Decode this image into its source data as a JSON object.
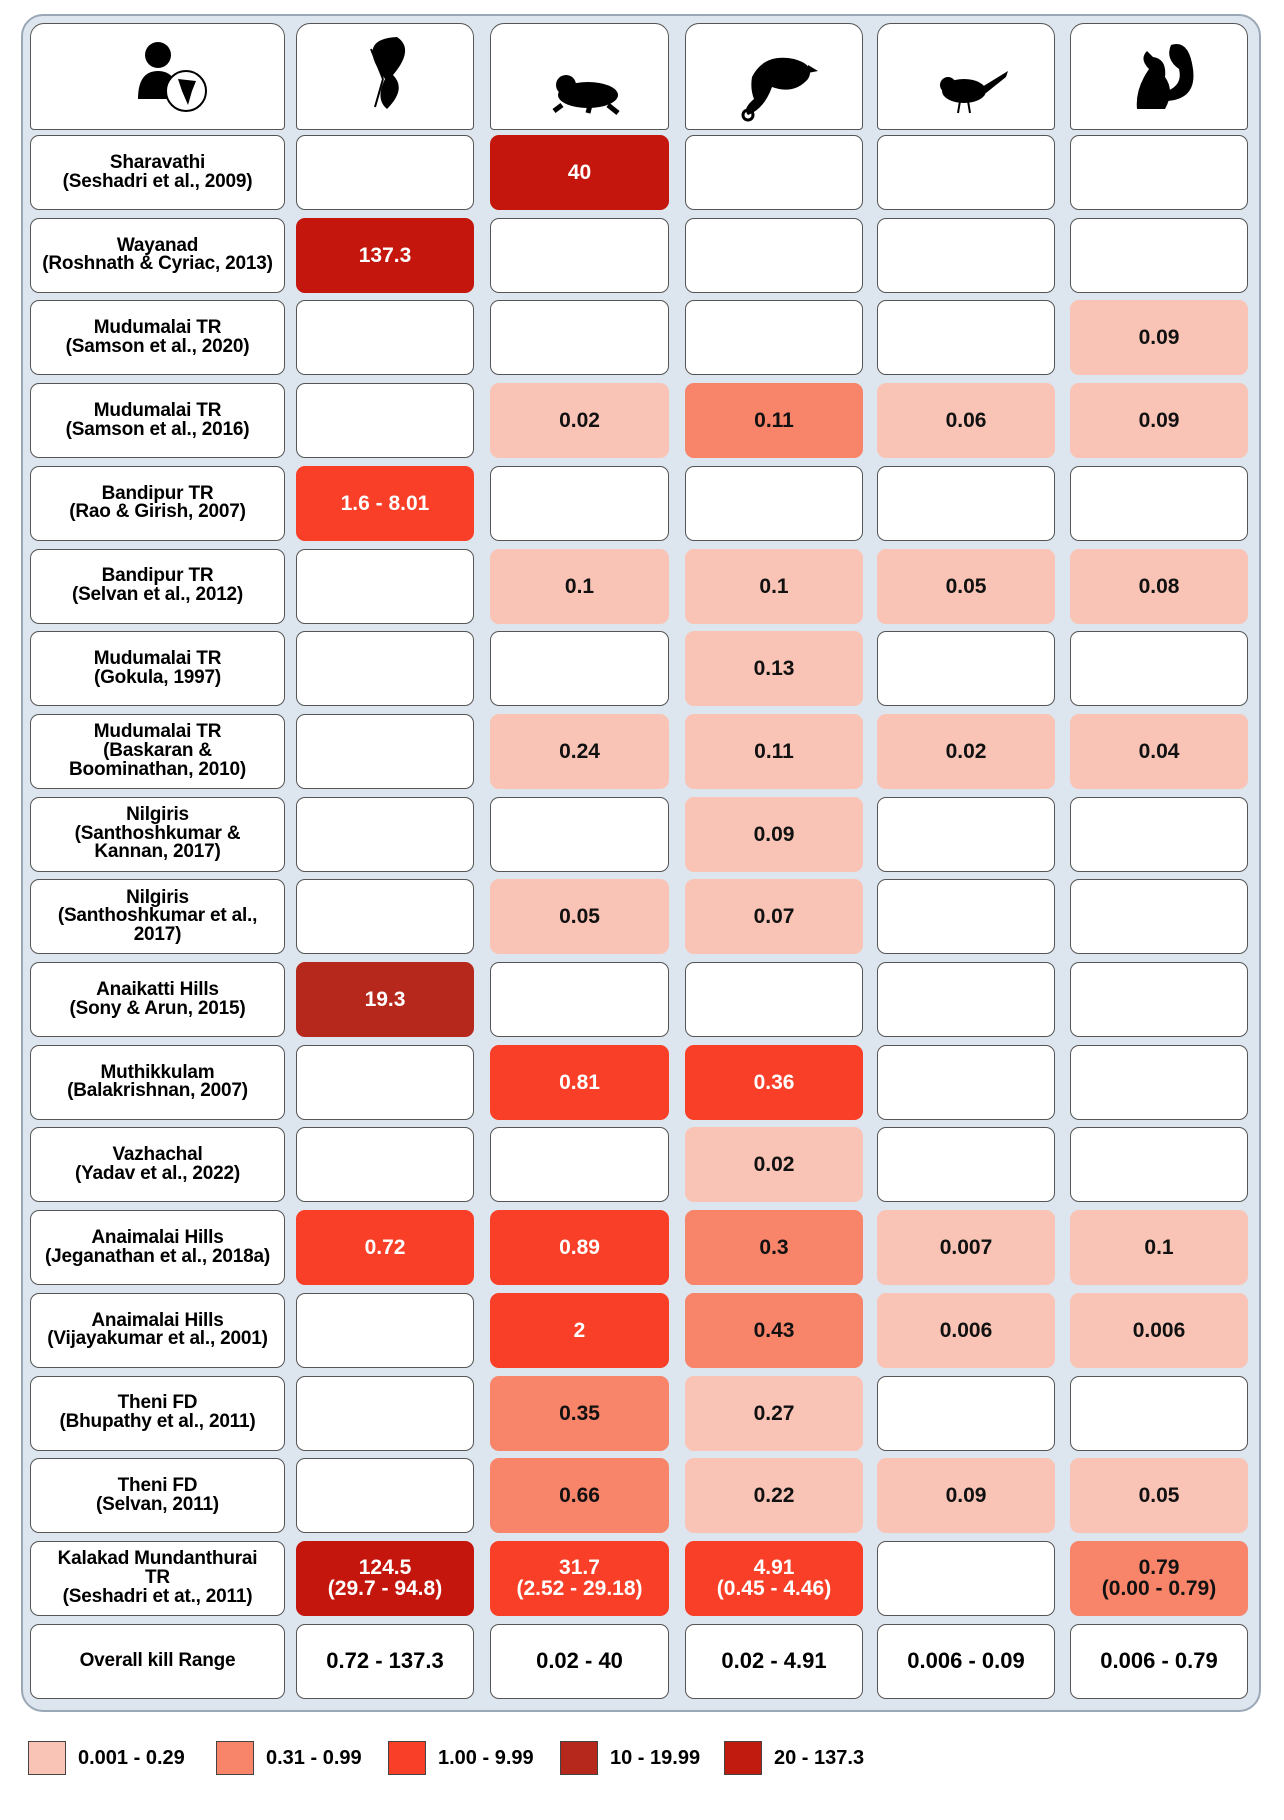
{
  "table": {
    "rows": [
      {
        "label": "Sharavathi\n(Seshadri et al., 2009)",
        "cells": [
          null,
          {
            "text": "40",
            "color": "#c4160d"
          },
          null,
          null,
          null
        ]
      },
      {
        "label": "Wayanad\n(Roshnath & Cyriac, 2013)",
        "cells": [
          {
            "text": "137.3",
            "color": "#c4160d"
          },
          null,
          null,
          null,
          null
        ]
      },
      {
        "label": "Mudumalai TR\n(Samson et al., 2020)",
        "cells": [
          null,
          null,
          null,
          null,
          {
            "text": "0.09",
            "color": "#f9c4b6"
          }
        ]
      },
      {
        "label": "Mudumalai TR\n(Samson et al., 2016)",
        "cells": [
          null,
          {
            "text": "0.02",
            "color": "#f9c4b6"
          },
          {
            "text": "0.11",
            "color": "#f8846a"
          },
          {
            "text": "0.06",
            "color": "#f9c4b6"
          },
          {
            "text": "0.09",
            "color": "#f9c4b6"
          }
        ]
      },
      {
        "label": "Bandipur TR\n(Rao & Girish, 2007)",
        "cells": [
          {
            "text": "1.6 - 8.01",
            "color": "#f93f27"
          },
          null,
          null,
          null,
          null
        ]
      },
      {
        "label": "Bandipur TR\n(Selvan et al., 2012)",
        "cells": [
          null,
          {
            "text": "0.1",
            "color": "#f9c4b6"
          },
          {
            "text": "0.1",
            "color": "#f9c4b6"
          },
          {
            "text": "0.05",
            "color": "#f9c4b6"
          },
          {
            "text": "0.08",
            "color": "#f9c4b6"
          }
        ]
      },
      {
        "label": "Mudumalai TR\n(Gokula, 1997)",
        "cells": [
          null,
          null,
          {
            "text": "0.13",
            "color": "#f9c4b6"
          },
          null,
          null
        ]
      },
      {
        "label": "Mudumalai TR\n(Baskaran &\nBoominathan,  2010)",
        "cells": [
          null,
          {
            "text": "0.24",
            "color": "#f9c4b6"
          },
          {
            "text": "0.11",
            "color": "#f9c4b6"
          },
          {
            "text": "0.02",
            "color": "#f9c4b6"
          },
          {
            "text": "0.04",
            "color": "#f9c4b6"
          }
        ]
      },
      {
        "label": "Nilgiris\n(Santhoshkumar &\nKannan, 2017)",
        "cells": [
          null,
          null,
          {
            "text": "0.09",
            "color": "#f9c4b6"
          },
          null,
          null
        ]
      },
      {
        "label": "Nilgiris\n(Santhoshkumar et al.,\n2017)",
        "cells": [
          null,
          {
            "text": "0.05",
            "color": "#f9c4b6"
          },
          {
            "text": "0.07",
            "color": "#f9c4b6"
          },
          null,
          null
        ]
      },
      {
        "label": "Anaikatti Hills\n(Sony & Arun, 2015)",
        "cells": [
          {
            "text": "19.3",
            "color": "#b6281c"
          },
          null,
          null,
          null,
          null
        ]
      },
      {
        "label": "Muthikkulam\n(Balakrishnan, 2007)",
        "cells": [
          null,
          {
            "text": "0.81",
            "color": "#f93f27"
          },
          {
            "text": "0.36",
            "color": "#f93f27"
          },
          null,
          null
        ]
      },
      {
        "label": "Vazhachal\n(Yadav et al., 2022)",
        "cells": [
          null,
          null,
          {
            "text": "0.02",
            "color": "#f9c4b6"
          },
          null,
          null
        ]
      },
      {
        "label": "Anaimalai Hills\n(Jeganathan et al., 2018a)",
        "cells": [
          {
            "text": "0.72",
            "color": "#f93f27"
          },
          {
            "text": "0.89",
            "color": "#f93f27"
          },
          {
            "text": "0.3",
            "color": "#f8846a"
          },
          {
            "text": "0.007",
            "color": "#f9c4b6"
          },
          {
            "text": "0.1",
            "color": "#f9c4b6"
          }
        ]
      },
      {
        "label": "Anaimalai Hills\n(Vijayakumar et al., 2001)",
        "cells": [
          null,
          {
            "text": "2",
            "color": "#f93f27"
          },
          {
            "text": "0.43",
            "color": "#f8846a"
          },
          {
            "text": "0.006",
            "color": "#f9c4b6"
          },
          {
            "text": "0.006",
            "color": "#f9c4b6"
          }
        ]
      },
      {
        "label": "Theni FD\n(Bhupathy et al., 2011)",
        "cells": [
          null,
          {
            "text": "0.35",
            "color": "#f8846a"
          },
          {
            "text": "0.27",
            "color": "#f9c4b6"
          },
          null,
          null
        ]
      },
      {
        "label": "Theni FD\n(Selvan, 2011)",
        "cells": [
          null,
          {
            "text": "0.66",
            "color": "#f8846a"
          },
          {
            "text": "0.22",
            "color": "#f9c4b6"
          },
          {
            "text": "0.09",
            "color": "#f9c4b6"
          },
          {
            "text": "0.05",
            "color": "#f9c4b6"
          }
        ]
      },
      {
        "label": "Kalakad Mundanthurai\nTR\n(Seshadri et at., 2011)",
        "cells": [
          {
            "text": "124.5\n(29.7 - 94.8)",
            "color": "#c4160d"
          },
          {
            "text": "31.7\n(2.52 - 29.18)",
            "color": "#f93f27"
          },
          {
            "text": "4.91\n(0.45 - 4.46)",
            "color": "#f93f27"
          },
          null,
          {
            "text": "0.79\n(0.00 - 0.79)",
            "color": "#f8846a"
          }
        ]
      }
    ],
    "overall": {
      "label": "Overall kill Range",
      "values": [
        "0.72 - 137.3",
        "0.02 - 40",
        "0.02 - 4.91",
        "0.006 - 0.09",
        "0.006 - 0.79"
      ]
    }
  },
  "legend": [
    {
      "label": "0.001 - 0.29",
      "color": "#f9c4b6"
    },
    {
      "label": "0.31 - 0.99",
      "color": "#f8846a"
    },
    {
      "label": "1.00 - 9.99",
      "color": "#f93f27"
    },
    {
      "label": "10 - 19.99",
      "color": "#b6281c"
    },
    {
      "label": "20 - 137.3",
      "color": "#c11a0f"
    }
  ]
}
